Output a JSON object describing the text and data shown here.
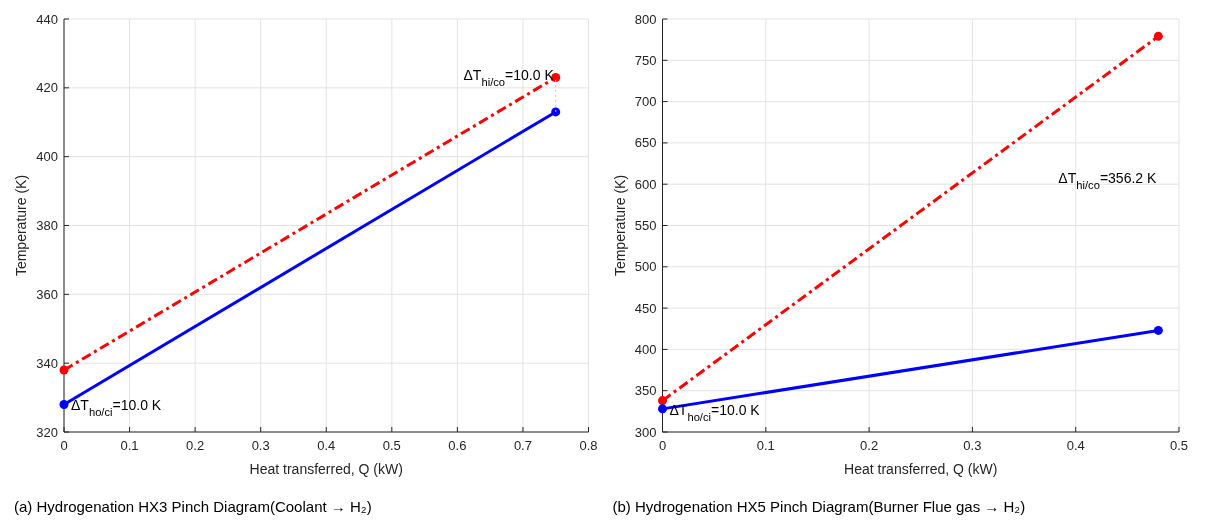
{
  "chart_data": [
    {
      "type": "line",
      "title": "(a) Hydrogenation HX3 Pinch Diagram(Coolant → H₂)",
      "xlabel": "Heat transferred, Q (kW)",
      "ylabel": "Temperature (K)",
      "xlim": [
        0,
        0.8
      ],
      "xticks": [
        0,
        0.1,
        0.2,
        0.3,
        0.4,
        0.5,
        0.6,
        0.7,
        0.8
      ],
      "ylim": [
        320,
        440
      ],
      "yticks": [
        320,
        340,
        360,
        380,
        400,
        420,
        440
      ],
      "grid": true,
      "marker": "circle",
      "series": [
        {
          "color": "#ff0000",
          "line_style": "dashed",
          "x": [
            0,
            0.75
          ],
          "values": [
            338,
            423
          ]
        },
        {
          "color": "#0000ff",
          "line_style": "solid",
          "x": [
            0,
            0.75
          ],
          "values": [
            328,
            413
          ]
        },
        {
          "color": "#c8c8c8",
          "line_style": "dotted",
          "marker": "none",
          "x": [
            0.75,
            0.75
          ],
          "values": [
            413,
            423
          ]
        }
      ],
      "annotations": [
        "ΔT$_{hi/co}$=10.0 K",
        "ΔT$_{ho/ci}$=10.0 K"
      ]
    },
    {
      "type": "line",
      "title": "(b) Hydrogenation HX5 Pinch Diagram(Burner Flue gas → H₂)",
      "xlabel": "Heat transferred, Q (kW)",
      "ylabel": "Temperature (K)",
      "xlim": [
        0,
        0.5
      ],
      "xticks": [
        0,
        0.1,
        0.2,
        0.3,
        0.4,
        0.5
      ],
      "ylim": [
        300,
        800
      ],
      "yticks": [
        300,
        350,
        400,
        450,
        500,
        550,
        600,
        650,
        700,
        750,
        800
      ],
      "grid": true,
      "marker": "circle",
      "series": [
        {
          "color": "#ff0000",
          "line_style": "dashed",
          "x": [
            0,
            0.48
          ],
          "values": [
            338,
            779
          ]
        },
        {
          "color": "#0000ff",
          "line_style": "solid",
          "x": [
            0,
            0.48
          ],
          "values": [
            328,
            423
          ]
        }
      ],
      "annotations": [
        "ΔT$_{hi/co}$=356.2 K",
        "ΔT$_{ho/ci}$=10.0 K"
      ]
    }
  ]
}
